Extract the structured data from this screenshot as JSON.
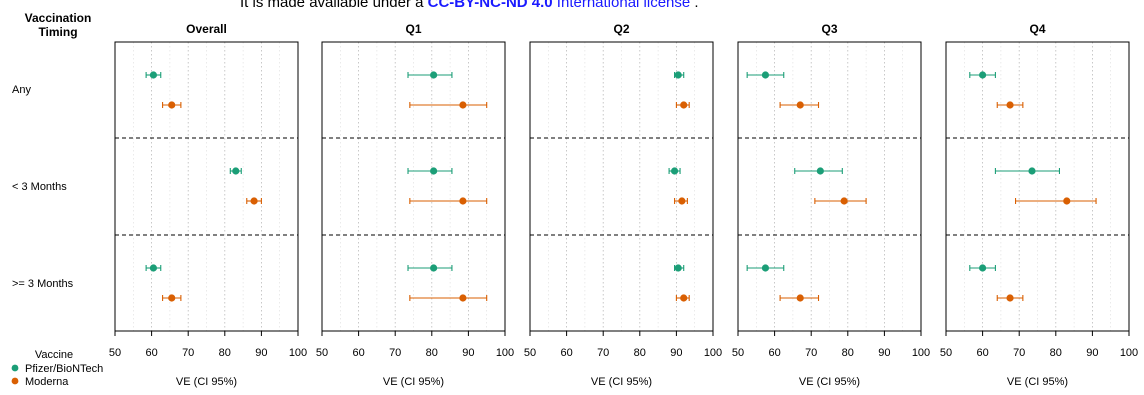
{
  "banner": {
    "prefix": "It is made available under a ",
    "license_code": "CC-BY-NC-ND 4.0",
    "suffix_link": " International license",
    "end": " ."
  },
  "row_header": "Vaccination\nTiming",
  "legend": {
    "title": "Vaccine",
    "items": [
      {
        "name": "Pfizer/BioNTech",
        "color": "#1b9e77"
      },
      {
        "name": "Moderna",
        "color": "#d95f02"
      }
    ]
  },
  "chart_data": {
    "type": "forest",
    "xlabel": "VE (CI 95%)",
    "xlim": [
      50,
      100
    ],
    "xticks": [
      50,
      60,
      70,
      80,
      90,
      100
    ],
    "grid": "dotted vertical",
    "rows": [
      "Any",
      "< 3 Months",
      ">= 3 Months"
    ],
    "panels": [
      {
        "title": "Overall",
        "data": [
          {
            "row": "Any",
            "vaccine": "Pfizer/BioNTech",
            "est": 60.5,
            "lo": 58.5,
            "hi": 62.5
          },
          {
            "row": "Any",
            "vaccine": "Moderna",
            "est": 65.5,
            "lo": 63,
            "hi": 68
          },
          {
            "row": "< 3 Months",
            "vaccine": "Pfizer/BioNTech",
            "est": 83,
            "lo": 81.5,
            "hi": 84.5
          },
          {
            "row": "< 3 Months",
            "vaccine": "Moderna",
            "est": 88,
            "lo": 86,
            "hi": 90
          },
          {
            "row": ">= 3 Months",
            "vaccine": "Pfizer/BioNTech",
            "est": 60.5,
            "lo": 58.5,
            "hi": 62.5
          },
          {
            "row": ">= 3 Months",
            "vaccine": "Moderna",
            "est": 65.5,
            "lo": 63,
            "hi": 68
          }
        ]
      },
      {
        "title": "Q1",
        "data": [
          {
            "row": "Any",
            "vaccine": "Pfizer/BioNTech",
            "est": 80.5,
            "lo": 73.5,
            "hi": 85.5
          },
          {
            "row": "Any",
            "vaccine": "Moderna",
            "est": 88.5,
            "lo": 74,
            "hi": 95
          },
          {
            "row": "< 3 Months",
            "vaccine": "Pfizer/BioNTech",
            "est": 80.5,
            "lo": 73.5,
            "hi": 85.5
          },
          {
            "row": "< 3 Months",
            "vaccine": "Moderna",
            "est": 88.5,
            "lo": 74,
            "hi": 95
          },
          {
            "row": ">= 3 Months",
            "vaccine": "Pfizer/BioNTech",
            "est": 80.5,
            "lo": 73.5,
            "hi": 85.5
          },
          {
            "row": ">= 3 Months",
            "vaccine": "Moderna",
            "est": 88.5,
            "lo": 74,
            "hi": 95
          }
        ]
      },
      {
        "title": "Q2",
        "data": [
          {
            "row": "Any",
            "vaccine": "Pfizer/BioNTech",
            "est": 90.5,
            "lo": 89.5,
            "hi": 92
          },
          {
            "row": "Any",
            "vaccine": "Moderna",
            "est": 92,
            "lo": 90,
            "hi": 93.5
          },
          {
            "row": "< 3 Months",
            "vaccine": "Pfizer/BioNTech",
            "est": 89.5,
            "lo": 88,
            "hi": 91
          },
          {
            "row": "< 3 Months",
            "vaccine": "Moderna",
            "est": 91.5,
            "lo": 89.5,
            "hi": 93
          },
          {
            "row": ">= 3 Months",
            "vaccine": "Pfizer/BioNTech",
            "est": 90.5,
            "lo": 89.5,
            "hi": 92
          },
          {
            "row": ">= 3 Months",
            "vaccine": "Moderna",
            "est": 92,
            "lo": 90,
            "hi": 93.5
          }
        ]
      },
      {
        "title": "Q3",
        "data": [
          {
            "row": "Any",
            "vaccine": "Pfizer/BioNTech",
            "est": 57.5,
            "lo": 52.5,
            "hi": 62.5
          },
          {
            "row": "Any",
            "vaccine": "Moderna",
            "est": 67,
            "lo": 61.5,
            "hi": 72
          },
          {
            "row": "< 3 Months",
            "vaccine": "Pfizer/BioNTech",
            "est": 72.5,
            "lo": 65.5,
            "hi": 78.5
          },
          {
            "row": "< 3 Months",
            "vaccine": "Moderna",
            "est": 79,
            "lo": 71,
            "hi": 85
          },
          {
            "row": ">= 3 Months",
            "vaccine": "Pfizer/BioNTech",
            "est": 57.5,
            "lo": 52.5,
            "hi": 62.5
          },
          {
            "row": ">= 3 Months",
            "vaccine": "Moderna",
            "est": 67,
            "lo": 61.5,
            "hi": 72
          }
        ]
      },
      {
        "title": "Q4",
        "data": [
          {
            "row": "Any",
            "vaccine": "Pfizer/BioNTech",
            "est": 60,
            "lo": 56.5,
            "hi": 63.5
          },
          {
            "row": "Any",
            "vaccine": "Moderna",
            "est": 67.5,
            "lo": 64,
            "hi": 71
          },
          {
            "row": "< 3 Months",
            "vaccine": "Pfizer/BioNTech",
            "est": 73.5,
            "lo": 63.5,
            "hi": 81
          },
          {
            "row": "< 3 Months",
            "vaccine": "Moderna",
            "est": 83,
            "lo": 69,
            "hi": 91
          },
          {
            "row": ">= 3 Months",
            "vaccine": "Pfizer/BioNTech",
            "est": 60,
            "lo": 56.5,
            "hi": 63.5
          },
          {
            "row": ">= 3 Months",
            "vaccine": "Moderna",
            "est": 67.5,
            "lo": 64,
            "hi": 71
          }
        ]
      }
    ]
  }
}
